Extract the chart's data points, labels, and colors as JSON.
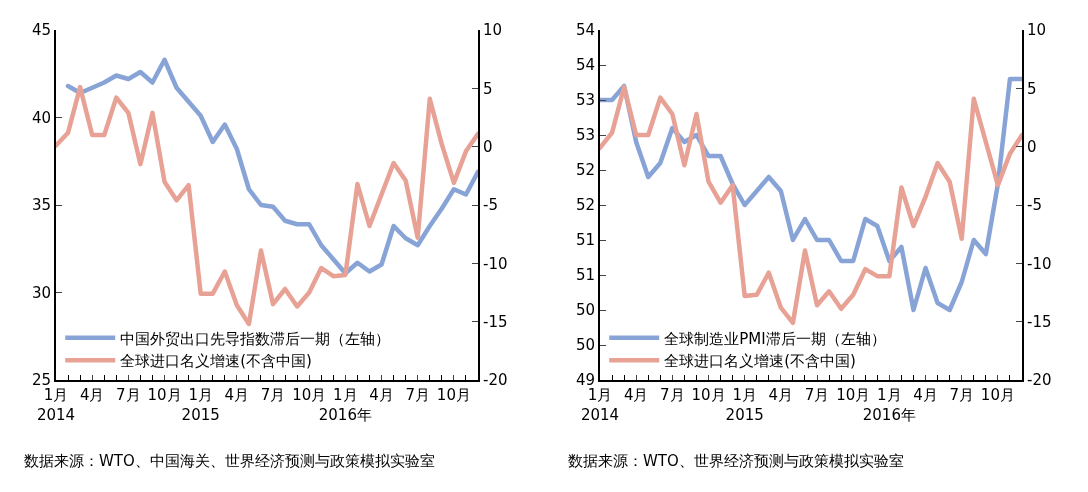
{
  "chart_data": [
    {
      "type": "line",
      "categories": [
        "1月\n2014",
        null,
        null,
        "4月",
        null,
        null,
        "7月",
        null,
        null,
        "10月",
        null,
        null,
        "1月\n2015",
        null,
        null,
        "4月",
        null,
        null,
        "7月",
        null,
        null,
        "10月",
        null,
        null,
        "1月\n2016年",
        null,
        null,
        "4月",
        null,
        null,
        "7月",
        null,
        null,
        "10月",
        null,
        null
      ],
      "series": [
        {
          "name": "中国外贸出口先导指数滞后一期（左轴）",
          "color": "#88a4d6",
          "axis": "y",
          "values": [
            null,
            41.8,
            41.4,
            41.7,
            42.0,
            42.4,
            42.2,
            42.6,
            42.0,
            43.3,
            41.7,
            40.9,
            40.1,
            38.6,
            39.6,
            38.2,
            35.9,
            35.0,
            34.9,
            34.1,
            33.9,
            33.9,
            32.7,
            31.9,
            31.1,
            31.7,
            31.2,
            31.6,
            33.8,
            33.1,
            32.7,
            33.8,
            34.8,
            35.9,
            35.6,
            36.9
          ]
        },
        {
          "name": "全球进口名义增速(不含中国)",
          "color": "#e8a195",
          "axis": "y2",
          "values": [
            0.1,
            1.2,
            5.1,
            1.0,
            1.0,
            4.2,
            2.9,
            -1.5,
            2.9,
            -3.0,
            -4.6,
            -3.3,
            -12.6,
            -12.6,
            -10.7,
            -13.6,
            -15.2,
            -8.9,
            -13.5,
            -12.2,
            -13.7,
            -12.5,
            -10.4,
            -11.1,
            -11.0,
            -3.2,
            -6.8,
            -4.1,
            -1.4,
            -2.9,
            -7.8,
            4.1,
            0.2,
            -3.1,
            -0.4,
            1.1
          ]
        }
      ],
      "ylim": [
        25,
        45
      ],
      "yticks": [
        25,
        30,
        35,
        40,
        45
      ],
      "y2lim": [
        -20,
        10
      ],
      "y2ticks": [
        -20,
        -15,
        -10,
        -5,
        0,
        5,
        10
      ],
      "legend": "bottom left",
      "grid": false,
      "marker": "none",
      "line_style": "solid",
      "annotations": [
        "数据来源：WTO、中国海关、世界经济预测与政策模拟实验室"
      ]
    },
    {
      "type": "line",
      "categories": [
        "1月\n2014",
        null,
        null,
        "4月",
        null,
        null,
        "7月",
        null,
        null,
        "10月",
        null,
        null,
        "1月\n2015",
        null,
        null,
        "4月",
        null,
        null,
        "7月",
        null,
        null,
        "10月",
        null,
        null,
        "1月\n2016年",
        null,
        null,
        "4月",
        null,
        null,
        "7月",
        null,
        null,
        "10月",
        null,
        null
      ],
      "series": [
        {
          "name": "全球制造业PMI滞后一期（左轴）",
          "color": "#88a4d6",
          "axis": "y",
          "values": [
            53.0,
            53.0,
            53.2,
            52.4,
            51.9,
            52.1,
            52.6,
            52.4,
            52.5,
            52.2,
            52.2,
            51.8,
            51.5,
            51.7,
            51.9,
            51.7,
            51.0,
            51.3,
            51.0,
            51.0,
            50.7,
            50.7,
            51.3,
            51.2,
            50.7,
            50.9,
            50.0,
            50.6,
            50.1,
            50.0,
            50.4,
            51.0,
            50.8,
            51.8,
            53.3,
            53.3
          ]
        },
        {
          "name": "全球进口名义增速(不含中国)",
          "color": "#e8a195",
          "axis": "y2",
          "values": [
            -0.1,
            1.2,
            5.1,
            1.0,
            1.0,
            4.2,
            2.8,
            -1.6,
            2.8,
            -3.0,
            -4.8,
            -3.3,
            -12.8,
            -12.7,
            -10.8,
            -13.8,
            -15.1,
            -8.9,
            -13.6,
            -12.4,
            -13.9,
            -12.7,
            -10.5,
            -11.1,
            -11.1,
            -3.5,
            -6.8,
            -4.3,
            -1.4,
            -3.0,
            -7.9,
            4.1,
            0.4,
            -3.3,
            -0.6,
            1.0
          ]
        }
      ],
      "ylim": [
        49,
        54
      ],
      "yticks": [
        49,
        {
          "value": 49.5,
          "label": "50"
        },
        50,
        {
          "value": 50.5,
          "label": "51"
        },
        51,
        {
          "value": 51.5,
          "label": "52"
        },
        52,
        {
          "value": 52.5,
          "label": "53"
        },
        53,
        {
          "value": 53.5,
          "label": "54"
        },
        54
      ],
      "y2lim": [
        -20,
        10
      ],
      "y2ticks": [
        -20,
        -15,
        -10,
        -5,
        0,
        5,
        10
      ],
      "legend": "bottom left",
      "grid": false,
      "marker": "none",
      "line_style": "solid",
      "annotations": [
        "数据来源：WTO、世界经济预测与政策模拟实验室"
      ]
    }
  ]
}
